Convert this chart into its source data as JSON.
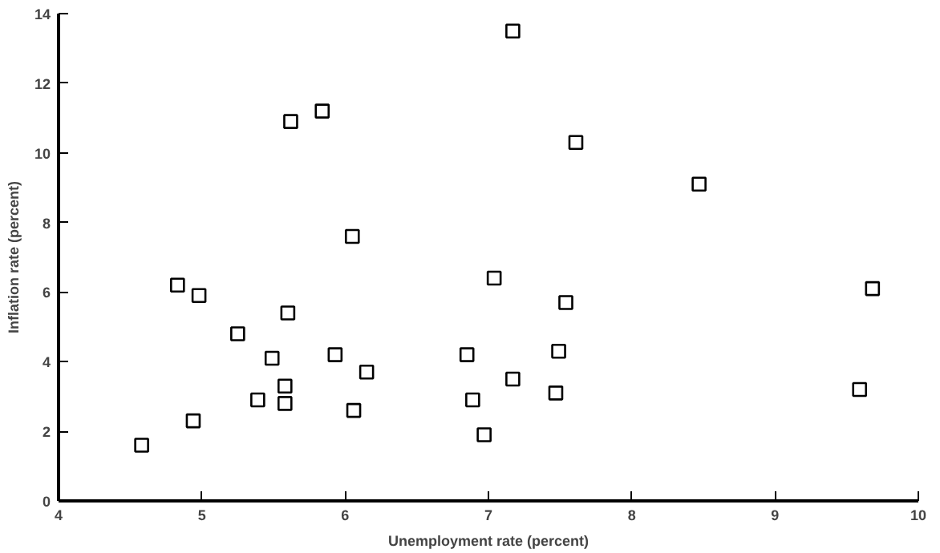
{
  "chart_data": {
    "type": "scatter",
    "xlabel": "Unemployment rate (percent)",
    "ylabel": "Inflation rate (percent)",
    "x": [
      4.58,
      4.94,
      4.83,
      4.98,
      5.25,
      5.49,
      5.39,
      5.58,
      5.58,
      5.6,
      5.62,
      5.84,
      5.93,
      6.05,
      6.06,
      6.15,
      6.85,
      6.89,
      6.97,
      7.04,
      7.17,
      7.17,
      7.54,
      7.49,
      7.47,
      7.61,
      8.47,
      9.59,
      9.68
    ],
    "series": [
      {
        "color": "#000000",
        "values": [
          1.6,
          2.3,
          6.2,
          5.9,
          4.8,
          4.1,
          2.9,
          3.3,
          2.8,
          5.4,
          10.9,
          11.2,
          4.2,
          7.6,
          2.6,
          3.7,
          4.2,
          2.9,
          1.9,
          6.4,
          13.5,
          3.5,
          5.7,
          4.3,
          3.1,
          10.3,
          9.1,
          3.2,
          6.1
        ]
      }
    ],
    "xlim": [
      4,
      10
    ],
    "ylim": [
      0,
      14
    ],
    "xticks": [
      4,
      5,
      6,
      7,
      8,
      9,
      10
    ],
    "yticks": [
      0,
      2,
      4,
      6,
      8,
      10,
      12,
      14
    ],
    "grid": false,
    "marker": "square"
  }
}
